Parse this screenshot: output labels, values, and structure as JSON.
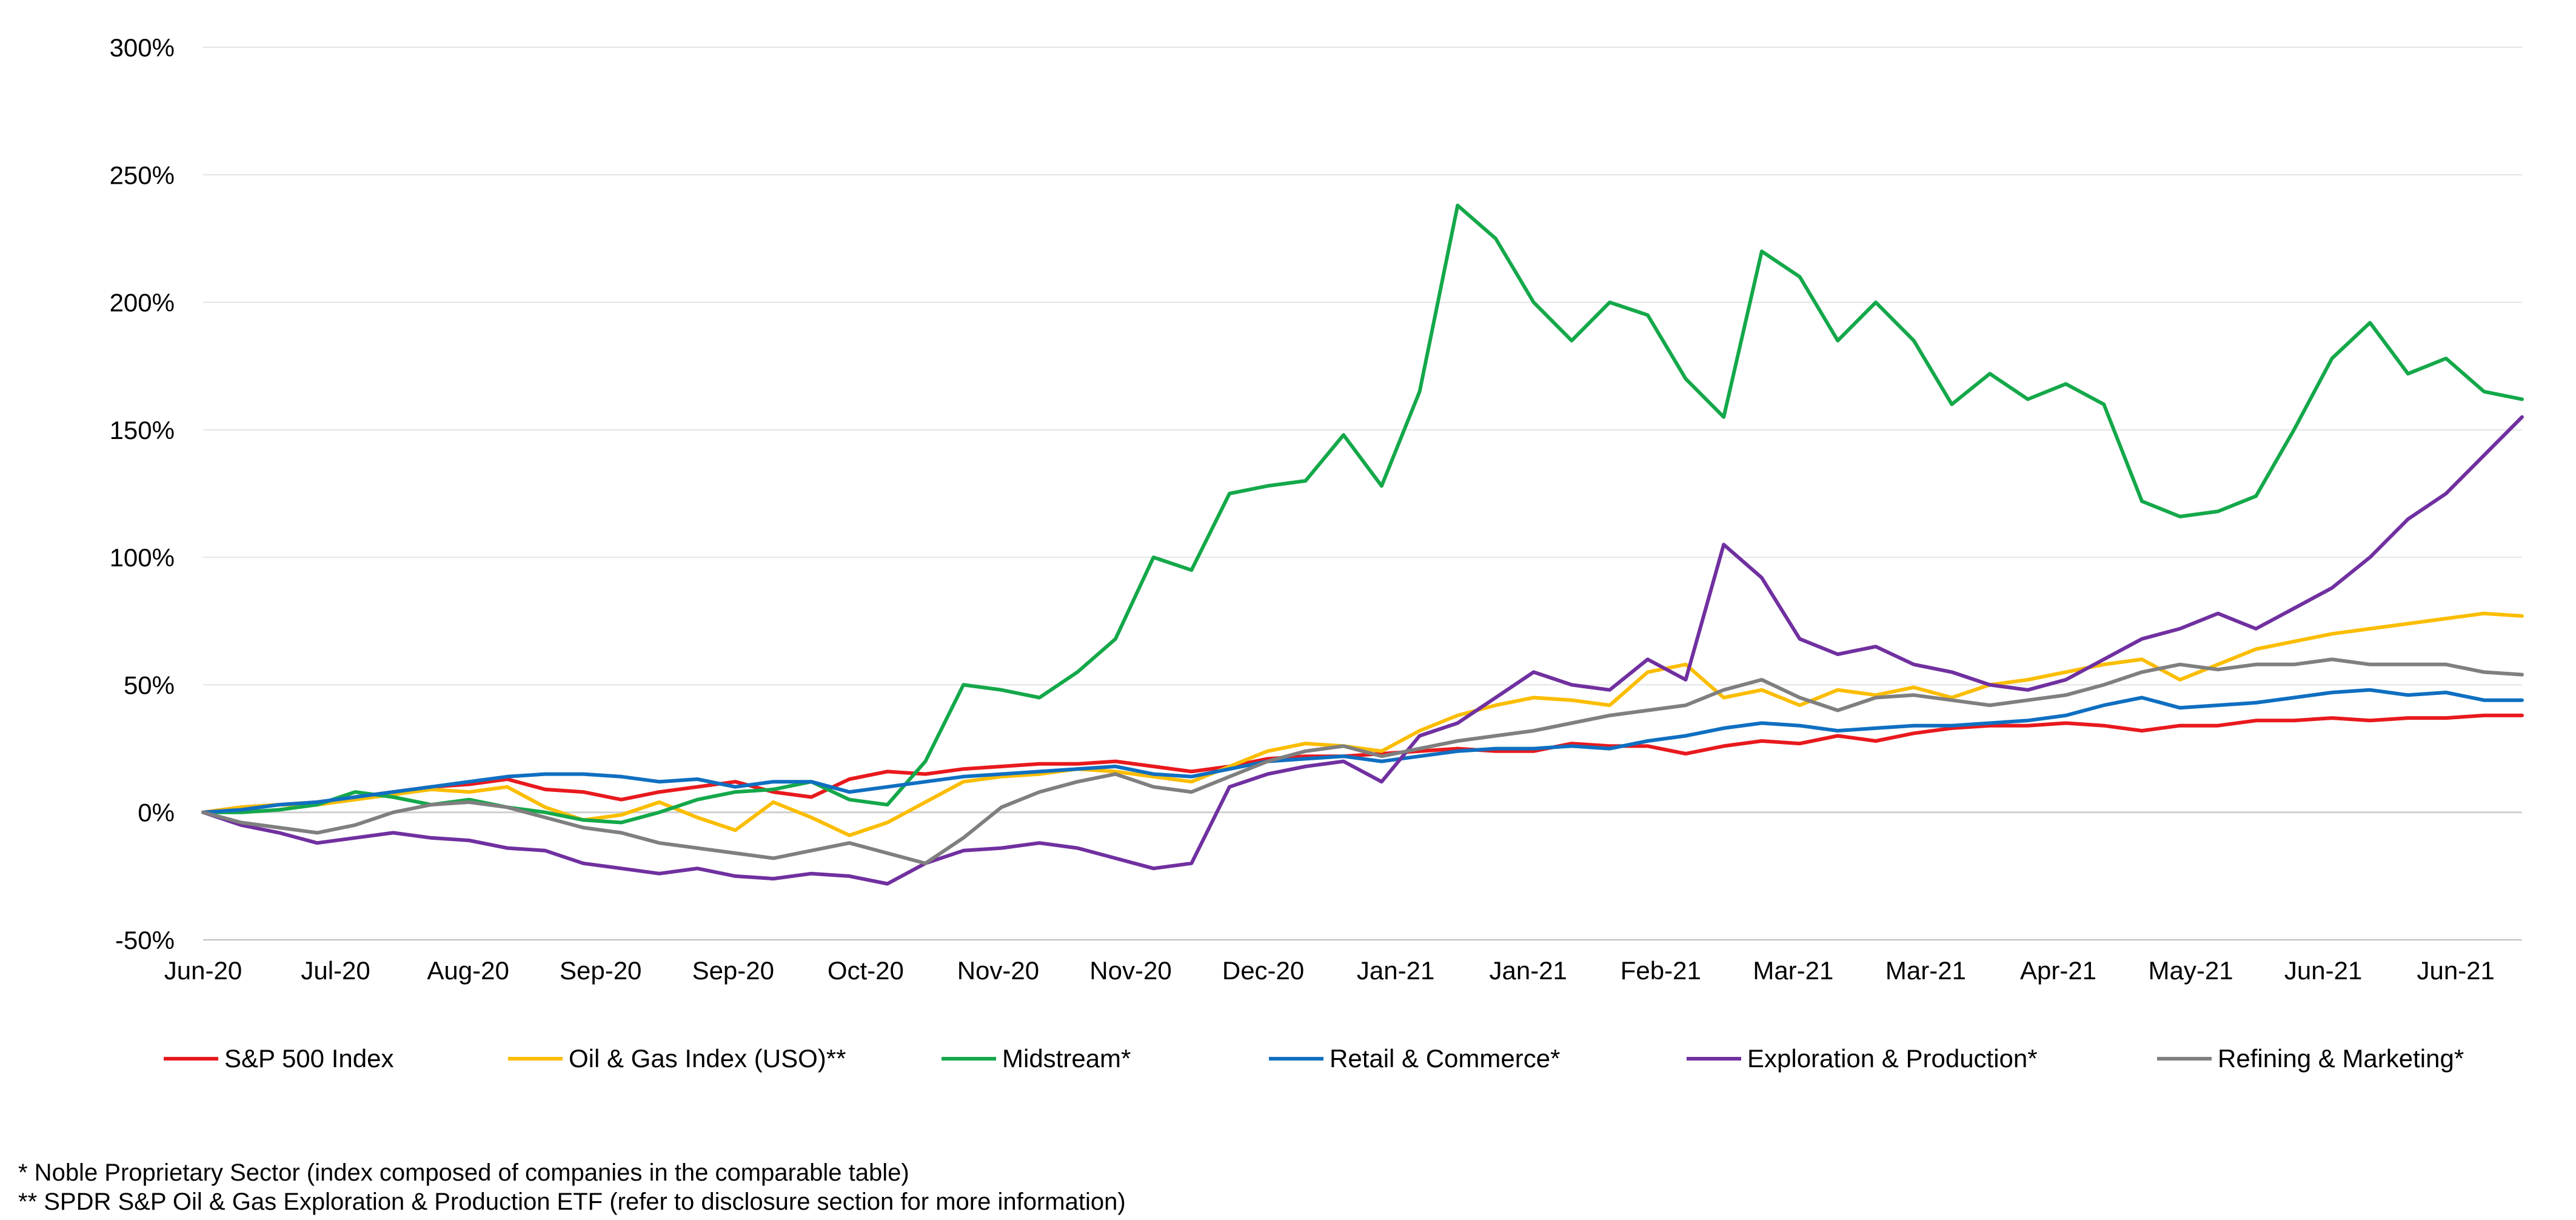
{
  "chart_data": {
    "type": "line",
    "title": "",
    "xlabel": "",
    "ylabel": "",
    "ylim": [
      -50,
      300
    ],
    "y_ticks": [
      -50,
      0,
      50,
      100,
      150,
      200,
      250,
      300
    ],
    "y_tick_labels": [
      "-50%",
      "0%",
      "50%",
      "100%",
      "150%",
      "200%",
      "250%",
      "300%"
    ],
    "x_tick_labels": [
      "Jun-20",
      "Jul-20",
      "Aug-20",
      "Sep-20",
      "Sep-20",
      "Oct-20",
      "Nov-20",
      "Nov-20",
      "Dec-20",
      "Jan-21",
      "Jan-21",
      "Feb-21",
      "Mar-21",
      "Mar-21",
      "Apr-21",
      "May-21",
      "Jun-21",
      "Jun-21"
    ],
    "x_index_max": 17.5,
    "grid": "horizontal",
    "legend_position": "bottom",
    "series": [
      {
        "name": "S&P 500 Index",
        "color": "#e8191d",
        "values": [
          0,
          2,
          3,
          4,
          6,
          8,
          10,
          11,
          13,
          9,
          8,
          5,
          8,
          10,
          12,
          8,
          6,
          13,
          16,
          15,
          17,
          18,
          19,
          19,
          20,
          18,
          16,
          18,
          21,
          22,
          22,
          23,
          24,
          25,
          24,
          24,
          27,
          26,
          26,
          23,
          26,
          28,
          27,
          30,
          28,
          31,
          33,
          34,
          34,
          35,
          34,
          32,
          34,
          34,
          36,
          36,
          37,
          36,
          37,
          37,
          38,
          38
        ]
      },
      {
        "name": "Oil & Gas Index (USO)**",
        "color": "#fbbd00",
        "values": [
          0,
          2,
          3,
          3,
          5,
          7,
          9,
          8,
          10,
          2,
          -3,
          -1,
          4,
          -2,
          -7,
          4,
          -2,
          -9,
          -4,
          4,
          12,
          14,
          15,
          17,
          16,
          14,
          12,
          18,
          24,
          27,
          26,
          24,
          32,
          38,
          42,
          45,
          44,
          42,
          55,
          58,
          45,
          48,
          42,
          48,
          46,
          49,
          45,
          50,
          52,
          55,
          58,
          60,
          52,
          58,
          64,
          67,
          70,
          72,
          74,
          76,
          78,
          77
        ]
      },
      {
        "name": "Midstream*",
        "color": "#14a84a",
        "values": [
          0,
          0,
          1,
          3,
          8,
          6,
          3,
          5,
          2,
          0,
          -3,
          -4,
          0,
          5,
          8,
          9,
          12,
          5,
          3,
          20,
          50,
          48,
          45,
          55,
          68,
          100,
          95,
          125,
          128,
          130,
          148,
          128,
          165,
          238,
          225,
          200,
          185,
          200,
          195,
          170,
          155,
          220,
          210,
          185,
          200,
          185,
          160,
          172,
          162,
          168,
          160,
          122,
          116,
          118,
          124,
          150,
          178,
          192,
          172,
          178,
          165,
          162
        ]
      },
      {
        "name": "Retail & Commerce*",
        "color": "#0f6fc1",
        "values": [
          0,
          1,
          3,
          4,
          6,
          8,
          10,
          12,
          14,
          15,
          15,
          14,
          12,
          13,
          10,
          12,
          12,
          8,
          10,
          12,
          14,
          15,
          16,
          17,
          18,
          15,
          14,
          17,
          20,
          21,
          22,
          20,
          22,
          24,
          25,
          25,
          26,
          25,
          28,
          30,
          33,
          35,
          34,
          32,
          33,
          34,
          34,
          35,
          36,
          38,
          42,
          45,
          41,
          42,
          43,
          45,
          47,
          48,
          46,
          47,
          44,
          44
        ]
      },
      {
        "name": "Exploration & Production*",
        "color": "#7030a0",
        "values": [
          0,
          -5,
          -8,
          -12,
          -10,
          -8,
          -10,
          -11,
          -14,
          -15,
          -20,
          -22,
          -24,
          -22,
          -25,
          -26,
          -24,
          -25,
          -28,
          -20,
          -15,
          -14,
          -12,
          -14,
          -18,
          -22,
          -20,
          10,
          15,
          18,
          20,
          12,
          30,
          35,
          45,
          55,
          50,
          48,
          60,
          52,
          105,
          92,
          68,
          62,
          65,
          58,
          55,
          50,
          48,
          52,
          60,
          68,
          72,
          78,
          72,
          80,
          88,
          100,
          115,
          125,
          140,
          155
        ]
      },
      {
        "name": "Refining & Marketing*",
        "color": "#7f7f7f",
        "values": [
          0,
          -4,
          -6,
          -8,
          -5,
          0,
          3,
          4,
          2,
          -2,
          -6,
          -8,
          -12,
          -14,
          -16,
          -18,
          -15,
          -12,
          -16,
          -20,
          -10,
          2,
          8,
          12,
          15,
          10,
          8,
          14,
          20,
          24,
          26,
          22,
          25,
          28,
          30,
          32,
          35,
          38,
          40,
          42,
          48,
          52,
          45,
          40,
          45,
          46,
          44,
          42,
          44,
          46,
          50,
          55,
          58,
          56,
          58,
          58,
          60,
          58,
          58,
          58,
          55,
          54
        ]
      }
    ]
  },
  "footnotes": [
    "* Noble Proprietary Sector (index composed of companies in the comparable table)",
    "** SPDR S&P Oil & Gas Exploration & Production ETF (refer to disclosure section for more information)"
  ]
}
